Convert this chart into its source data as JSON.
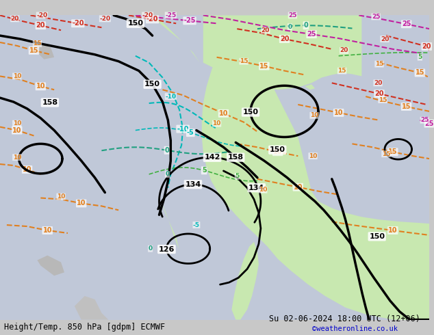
{
  "title_left": "Height/Temp. 850 hPa [gdpm] ECMWF",
  "title_right": "Su 02-06-2024 18:00 UTC (12+06)",
  "watermark": "©weatheronline.co.uk",
  "title_color": "#000000",
  "watermark_color": "#0000cc",
  "background_color": "#e8e8e8",
  "land_color_cold": "#c8e8c0",
  "land_color_warm": "#d8f0d0",
  "sea_color": "#d0d8e8",
  "fig_width": 6.34,
  "fig_height": 4.9,
  "dpi": 100
}
